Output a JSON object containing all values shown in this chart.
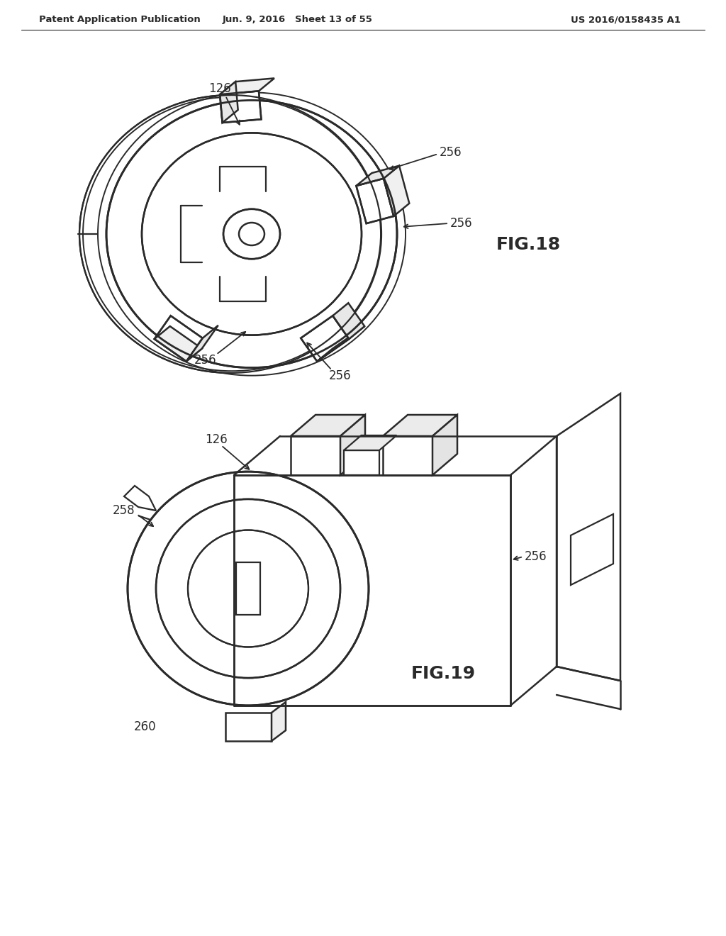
{
  "bg_color": "#ffffff",
  "line_color": "#2a2a2a",
  "header_left": "Patent Application Publication",
  "header_mid": "Jun. 9, 2016   Sheet 13 of 55",
  "header_right": "US 2016/0158435 A1",
  "fig18_label": "FIG.18",
  "fig19_label": "FIG.19",
  "header_fontsize": 9.5,
  "fig_label_fontsize": 18,
  "ref_fontsize": 12
}
